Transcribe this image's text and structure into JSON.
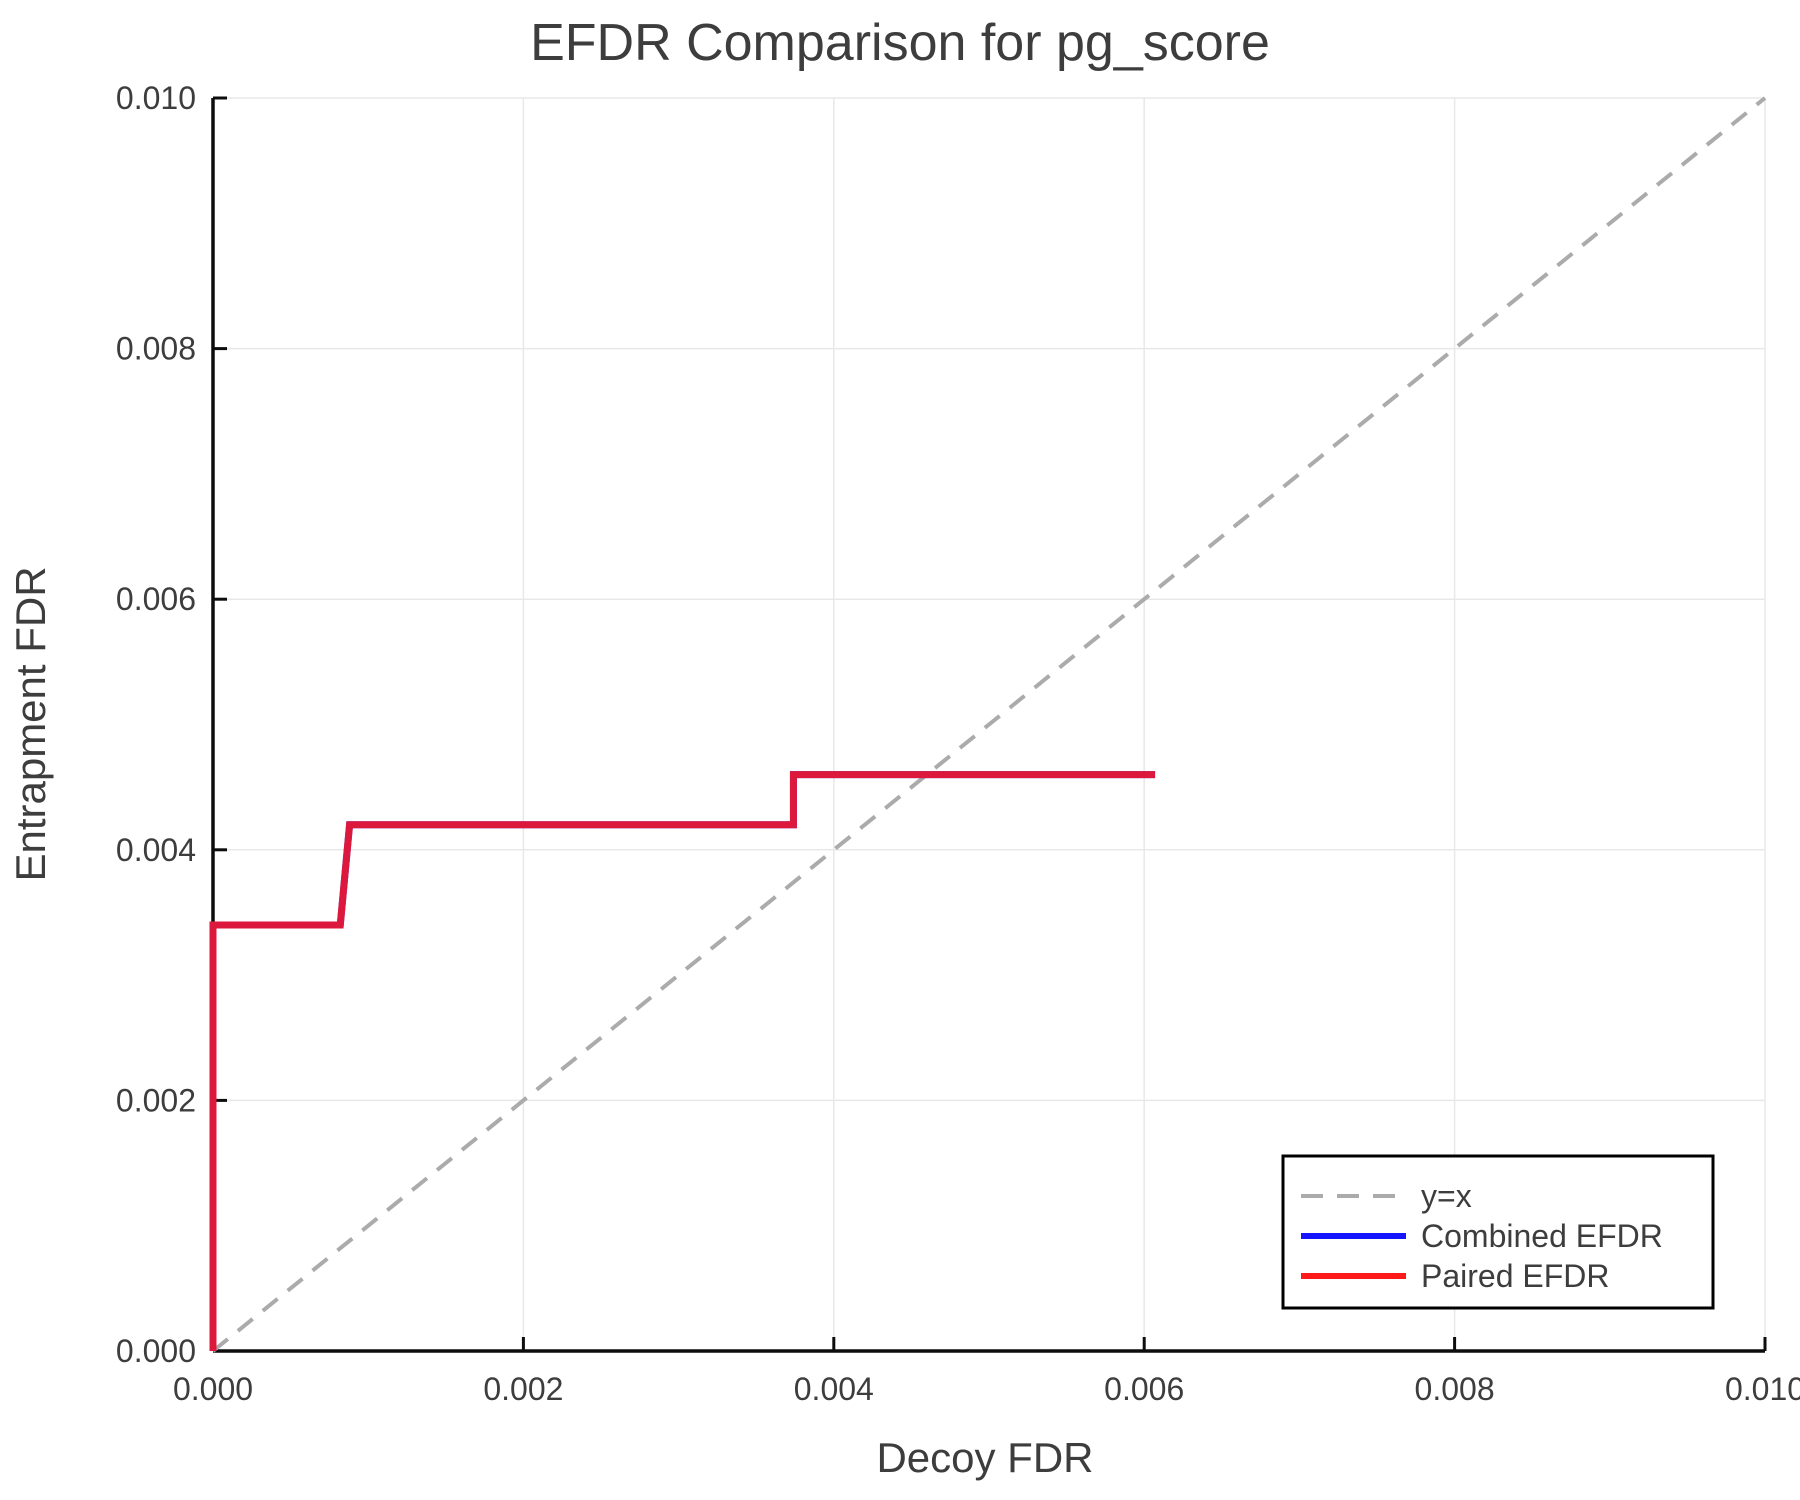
{
  "page": {
    "background": "#ffffff"
  },
  "chart_data": {
    "type": "line",
    "title": "EFDR Comparison for pg_score",
    "xlabel": "Decoy FDR",
    "ylabel": "Entrapment FDR",
    "xlim": [
      0.0,
      0.01
    ],
    "ylim": [
      0.0,
      0.01
    ],
    "xtick_labels": [
      "0.000",
      "0.002",
      "0.004",
      "0.006",
      "0.008",
      "0.010"
    ],
    "ytick_labels": [
      "0.000",
      "0.002",
      "0.004",
      "0.006",
      "0.008",
      "0.010"
    ],
    "grid": true,
    "legend_position": "bottom-right",
    "colors": {
      "grid": "#e8e8e8",
      "axis": "#0d0d0d",
      "text": "#3d3d3d",
      "background": "#ffffff",
      "legend_border": "#000000"
    },
    "series": [
      {
        "name": "y=x",
        "color": "#ababab",
        "style": "dashed",
        "width": 4,
        "points": [
          [
            0.0,
            0.0
          ],
          [
            0.01,
            0.01
          ]
        ]
      },
      {
        "name": "Combined EFDR",
        "color": "#1515ff",
        "style": "solid",
        "width": 7,
        "points": [
          [
            0.0,
            0.0
          ],
          [
            0.0,
            0.0034
          ],
          [
            0.00082,
            0.0034
          ],
          [
            0.00088,
            0.0042
          ],
          [
            0.00374,
            0.0042
          ],
          [
            0.00374,
            0.0046
          ],
          [
            0.00607,
            0.0046
          ]
        ]
      },
      {
        "name": "Paired EFDR",
        "color": "#ff1a1a",
        "style": "solid",
        "width": 7,
        "opacity": 0.85,
        "points": [
          [
            0.0,
            0.0
          ],
          [
            0.0,
            0.0034
          ],
          [
            0.00082,
            0.0034
          ],
          [
            0.00088,
            0.0042
          ],
          [
            0.00374,
            0.0042
          ],
          [
            0.00374,
            0.0046
          ],
          [
            0.00607,
            0.0046
          ]
        ]
      }
    ]
  }
}
